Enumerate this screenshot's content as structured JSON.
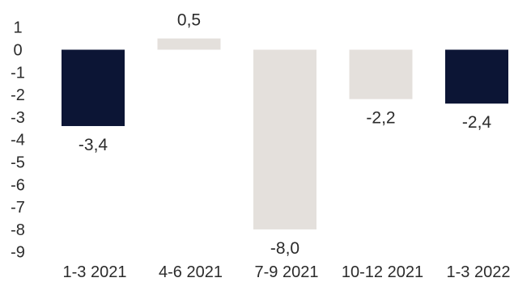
{
  "chart_data": {
    "type": "bar",
    "title": "",
    "xlabel": "",
    "ylabel": "",
    "categories": [
      "1-3 2021",
      "4-6 2021",
      "7-9 2021",
      "10-12 2021",
      "1-3 2022"
    ],
    "values": [
      -3.4,
      0.5,
      -8.0,
      -2.2,
      -2.4
    ],
    "value_labels": [
      "-3,4",
      "0,5",
      "-8,0",
      "-2,2",
      "-2,4"
    ],
    "bar_colors": [
      "#0c1535",
      "#e4e0dc",
      "#e4e0dc",
      "#e4e0dc",
      "#0c1535"
    ],
    "ylim": [
      -9,
      1
    ],
    "y_ticks": [
      1,
      0,
      -1,
      -2,
      -3,
      -4,
      -5,
      -6,
      -7,
      -8,
      -9
    ],
    "y_tick_labels": [
      "1",
      "0",
      "-1",
      "-2",
      "-3",
      "-4",
      "-5",
      "-6",
      "-7",
      "-8",
      "-9"
    ],
    "grid": false,
    "legend": "none"
  }
}
